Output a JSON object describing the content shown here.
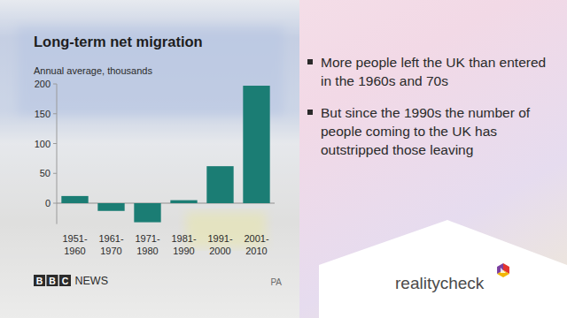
{
  "chart_data": {
    "type": "bar",
    "title": "Long-term net migration",
    "subtitle": "Annual average, thousands",
    "categories": [
      "1951-1960",
      "1961-1970",
      "1971-1980",
      "1981-1990",
      "1991-2000",
      "2001-2010"
    ],
    "values": [
      12,
      -13,
      -32,
      5,
      62,
      197
    ],
    "color": "#1b7d74",
    "ylim": [
      -35,
      200
    ],
    "yticks": [
      0,
      50,
      100,
      150,
      200
    ],
    "grid": false
  },
  "bullets": [
    "More people left the UK than entered in the 1960s and 70s",
    "But since the 1990s the number of people coming to the UK has outstripped those leaving"
  ],
  "footer": {
    "logo": "BBC NEWS",
    "credit": "PA",
    "brand": "realitycheck"
  }
}
